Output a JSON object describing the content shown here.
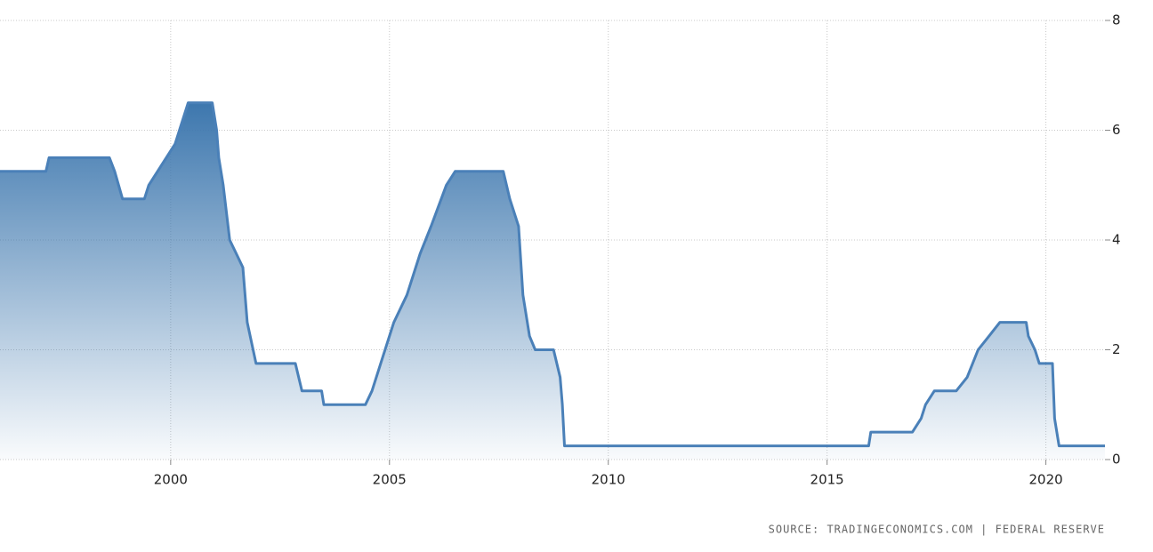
{
  "chart_data": {
    "type": "area",
    "source": "SOURCE: TRADINGECONOMICS.COM | FEDERAL RESERVE",
    "x": [
      1996.1,
      1997.15,
      1997.22,
      1998.6,
      1998.72,
      1998.9,
      1999.4,
      1999.5,
      1999.7,
      1999.9,
      2000.1,
      2000.2,
      2000.4,
      2000.95,
      2001.05,
      2001.1,
      2001.2,
      2001.35,
      2001.5,
      2001.65,
      2001.75,
      2001.95,
      2002.85,
      2003.0,
      2003.45,
      2003.5,
      2004.45,
      2004.6,
      2004.8,
      2005.1,
      2005.4,
      2005.7,
      2005.95,
      2006.3,
      2006.5,
      2007.6,
      2007.75,
      2007.95,
      2008.05,
      2008.2,
      2008.33,
      2008.75,
      2008.9,
      2008.95,
      2009.0,
      2015.95,
      2016.0,
      2016.95,
      2017.15,
      2017.25,
      2017.45,
      2017.95,
      2018.2,
      2018.45,
      2018.7,
      2018.95,
      2019.55,
      2019.6,
      2019.75,
      2019.85,
      2020.15,
      2020.2,
      2020.3,
      2021.35
    ],
    "series": [
      {
        "color": "#4a80b8",
        "values": [
          5.25,
          5.25,
          5.5,
          5.5,
          5.25,
          4.75,
          4.75,
          5.0,
          5.25,
          5.5,
          5.75,
          6.0,
          6.5,
          6.5,
          6.0,
          5.5,
          5.0,
          4.0,
          3.75,
          3.5,
          2.5,
          1.75,
          1.75,
          1.25,
          1.25,
          1.0,
          1.0,
          1.25,
          1.75,
          2.5,
          3.0,
          3.75,
          4.25,
          5.0,
          5.25,
          5.25,
          4.75,
          4.25,
          3.0,
          2.25,
          2.0,
          2.0,
          1.5,
          1.0,
          0.25,
          0.25,
          0.5,
          0.5,
          0.75,
          1.0,
          1.25,
          1.25,
          1.5,
          2.0,
          2.25,
          2.5,
          2.5,
          2.25,
          2.0,
          1.75,
          1.75,
          0.75,
          0.25,
          0.25
        ]
      }
    ],
    "xlim": [
      1996.1,
      2021.35
    ],
    "xticks": [
      2000,
      2005,
      2010,
      2015,
      2020
    ],
    "ylim": [
      0,
      8
    ],
    "yticks": [
      0,
      2,
      4,
      6,
      8
    ],
    "grid": true
  }
}
